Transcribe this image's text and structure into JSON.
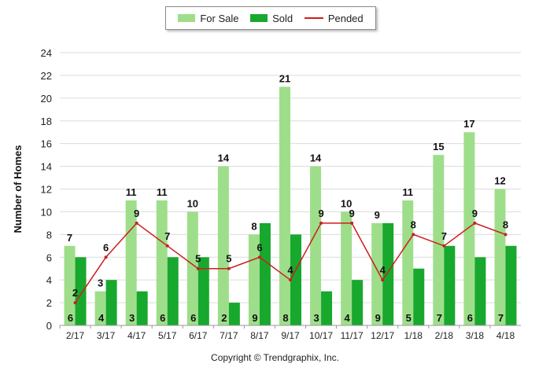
{
  "chart_data": {
    "type": "bar",
    "categories": [
      "2/17",
      "3/17",
      "4/17",
      "5/17",
      "6/17",
      "7/17",
      "8/17",
      "9/17",
      "10/17",
      "11/17",
      "12/17",
      "1/18",
      "2/18",
      "3/18",
      "4/18"
    ],
    "series": [
      {
        "name": "For Sale",
        "type": "bar",
        "color": "#9ede8a",
        "values": [
          7,
          3,
          11,
          11,
          10,
          14,
          8,
          21,
          14,
          10,
          9,
          11,
          15,
          17,
          12
        ]
      },
      {
        "name": "Sold",
        "type": "bar",
        "color": "#18a82e",
        "values": [
          6,
          4,
          3,
          6,
          6,
          2,
          9,
          8,
          3,
          4,
          9,
          5,
          7,
          6,
          7
        ]
      },
      {
        "name": "Pended",
        "type": "line",
        "color": "#cc1f1f",
        "values": [
          2,
          6,
          9,
          7,
          5,
          5,
          6,
          4,
          9,
          9,
          4,
          8,
          7,
          9,
          8
        ]
      }
    ],
    "ylabel": "Number of Homes",
    "xlabel": "",
    "ylim": [
      0,
      24
    ],
    "yticks": [
      0,
      2,
      4,
      6,
      8,
      10,
      12,
      14,
      16,
      18,
      20,
      22,
      24
    ],
    "grid": true,
    "legend_position": "top-center"
  },
  "footer": {
    "copyright": "Copyright © Trendgraphix, Inc."
  }
}
